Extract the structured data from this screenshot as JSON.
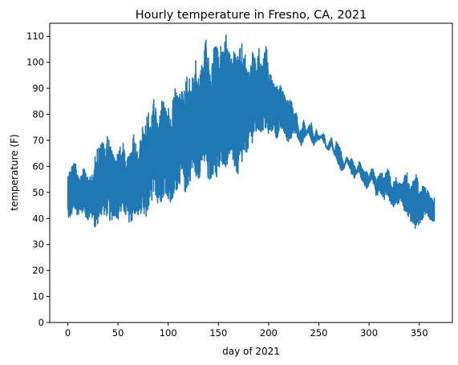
{
  "chart_data": {
    "type": "line",
    "title": "Hourly temperature in Fresno, CA, 2021",
    "xlabel": "day of 2021",
    "ylabel": "temperature (F)",
    "xlim": [
      -18,
      383
    ],
    "ylim": [
      0,
      115
    ],
    "x_ticks": [
      0,
      50,
      100,
      150,
      200,
      250,
      300,
      350
    ],
    "y_ticks": [
      0,
      10,
      20,
      30,
      40,
      50,
      60,
      70,
      80,
      90,
      100,
      110
    ],
    "grid": false,
    "line_color": "#1f77b4",
    "series": [
      {
        "sample_interval_days": 2.5,
        "x_start": 0,
        "min_values": [
          39,
          40,
          41,
          42,
          41,
          43,
          42,
          40,
          39,
          41,
          39,
          35,
          38,
          40,
          42,
          40,
          41,
          38,
          40,
          41,
          39,
          41,
          43,
          40,
          39,
          38,
          39,
          41,
          40,
          42,
          40,
          38,
          43,
          45,
          47,
          49,
          45,
          46,
          48,
          50,
          47,
          44,
          46,
          50,
          52,
          54,
          51,
          49,
          52,
          55,
          57,
          56,
          54,
          58,
          60,
          58,
          52,
          55,
          57,
          54,
          56,
          58,
          61,
          59,
          62,
          64,
          60,
          57,
          55,
          58,
          62,
          65,
          66,
          68,
          70,
          72,
          73,
          72,
          74,
          73,
          71,
          73,
          74,
          70,
          72,
          74,
          73,
          70,
          69,
          71,
          73,
          72,
          70,
          68,
          70,
          72,
          73,
          70,
          68,
          69,
          72,
          71,
          69,
          67,
          66,
          68,
          65,
          63,
          60,
          58,
          59,
          62,
          60,
          57,
          55,
          57,
          58,
          55,
          53,
          51,
          53,
          55,
          52,
          48,
          50,
          49,
          47,
          49,
          47,
          45,
          44,
          45,
          46,
          46,
          43,
          42,
          40,
          38,
          36,
          35,
          37,
          39,
          41,
          42,
          40,
          38,
          39
        ],
        "max_values": [
          58,
          60,
          62,
          61,
          58,
          57,
          59,
          60,
          55,
          58,
          56,
          66,
          68,
          69,
          70,
          68,
          73,
          68,
          65,
          63,
          66,
          68,
          70,
          62,
          64,
          65,
          73,
          70,
          63,
          73,
          76,
          78,
          82,
          75,
          87,
          82,
          76,
          85,
          87,
          81,
          83,
          78,
          88,
          91,
          87,
          89,
          90,
          94,
          96,
          92,
          97,
          101,
          95,
          98,
          104,
          110,
          103,
          96,
          105,
          108,
          103,
          107,
          104,
          111,
          105,
          102,
          106,
          104,
          103,
          108,
          106,
          101,
          97,
          103,
          105,
          98,
          106,
          99,
          102,
          107,
          97,
          95,
          92,
          90,
          93,
          91,
          88,
          85,
          86,
          87,
          80,
          82,
          73,
          75,
          78,
          73,
          76,
          77,
          71,
          75,
          70,
          72,
          73,
          67,
          69,
          72,
          65,
          70,
          68,
          66,
          60,
          64,
          62,
          63,
          61,
          58,
          62,
          60,
          58,
          59,
          56,
          60,
          58,
          55,
          57,
          58,
          56,
          59,
          60,
          52,
          55,
          56,
          54,
          53,
          57,
          58,
          53,
          52,
          60,
          57,
          51,
          53,
          52,
          51,
          50,
          49,
          48
        ]
      }
    ]
  }
}
